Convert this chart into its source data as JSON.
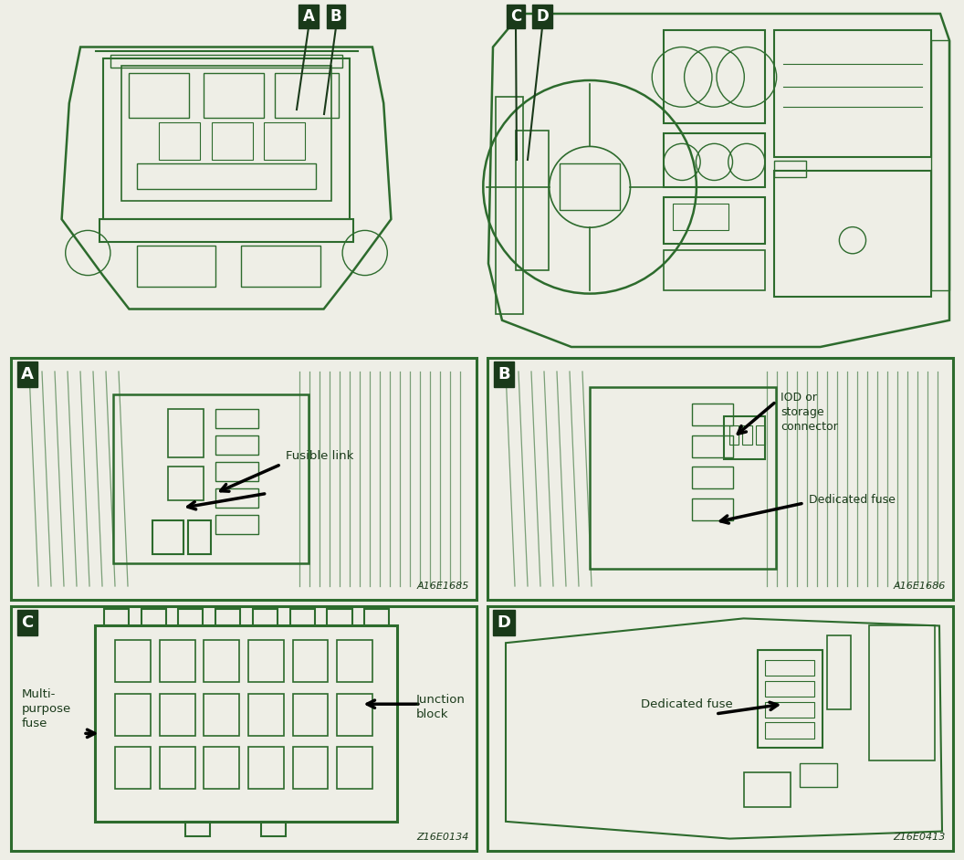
{
  "bg_color": "#eeeee6",
  "dark_green": "#1a3a1a",
  "medium_green": "#2d6b2d",
  "label_bg": "#1a3a1a",
  "panel_A_annotation": "Fusible link",
  "panel_A_code": "A16E1685",
  "panel_B_annotation1": "IOD or\nstorage\nconnector",
  "panel_B_annotation2": "Dedicated fuse",
  "panel_B_code": "A16E1686",
  "panel_C_annotation1": "Multi-\npurpose\nfuse",
  "panel_C_annotation2": "Junction\nblock",
  "panel_C_code": "Z16E0134",
  "panel_D_annotation": "Dedicated fuse",
  "panel_D_code": "Z16E0413",
  "figure_width": 10.56,
  "figure_height": 9.42
}
